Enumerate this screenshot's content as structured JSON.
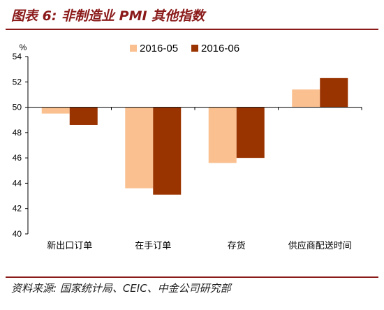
{
  "figure": {
    "title": "图表 6:  非制造业 PMI 其他指数",
    "source": "资料来源:  国家统计局、CEIC、中金公司研究部"
  },
  "chart_data": {
    "type": "bar",
    "ylabel": "%",
    "ylim": [
      40,
      54
    ],
    "yticks": [
      40,
      42,
      44,
      46,
      48,
      50,
      52,
      54
    ],
    "baseline": 50,
    "legend_position": "top-center",
    "categories": [
      "新出口订单",
      "在手订单",
      "存货",
      "供应商配送时间"
    ],
    "series": [
      {
        "name": "2016-05",
        "color": "#fac090",
        "values": [
          49.5,
          43.6,
          45.6,
          51.4
        ]
      },
      {
        "name": "2016-06",
        "color": "#993300",
        "values": [
          48.6,
          43.1,
          46.0,
          52.3
        ]
      }
    ]
  }
}
